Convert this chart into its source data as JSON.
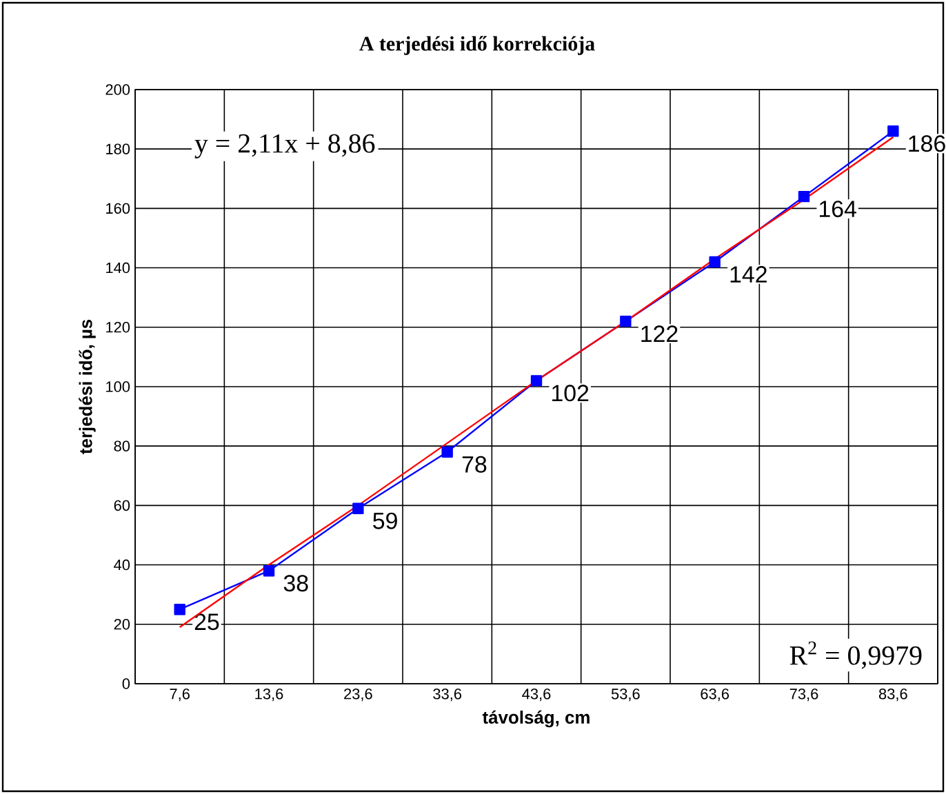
{
  "chart_data": {
    "type": "line",
    "title": "A terjedési idő korrekciója",
    "xlabel": "távolság, cm",
    "ylabel": "terjedési idő,  µs",
    "categories": [
      "7,6",
      "13,6",
      "23,6",
      "33,6",
      "43,6",
      "53,6",
      "63,6",
      "73,6",
      "83,6"
    ],
    "series": [
      {
        "color": "#0000ff",
        "marker": "square",
        "values": [
          25,
          38,
          59,
          78,
          102,
          122,
          142,
          164,
          186
        ],
        "value_labels": [
          "25",
          "38",
          "59",
          "78",
          "102",
          "122",
          "142",
          "164",
          "186"
        ]
      },
      {
        "color": "#ff0000",
        "marker": "none",
        "values": [
          19,
          40,
          60,
          81,
          102,
          122,
          143,
          163,
          184
        ]
      }
    ],
    "annotations": [
      "y = 2,11x + 8,86",
      "R$^{2}$ = 0,9979"
    ],
    "ylim": [
      0,
      200
    ],
    "yticks": [
      0,
      20,
      40,
      60,
      80,
      100,
      120,
      140,
      160,
      180,
      200
    ],
    "grid": true
  }
}
